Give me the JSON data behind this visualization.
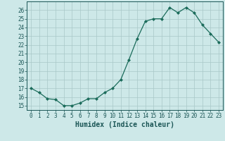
{
  "x": [
    0,
    1,
    2,
    3,
    4,
    5,
    6,
    7,
    8,
    9,
    10,
    11,
    12,
    13,
    14,
    15,
    16,
    17,
    18,
    19,
    20,
    21,
    22,
    23
  ],
  "y": [
    17,
    16.5,
    15.8,
    15.7,
    15.0,
    15.0,
    15.3,
    15.8,
    15.8,
    16.5,
    17.0,
    18.0,
    20.3,
    22.7,
    24.7,
    25.0,
    25.0,
    26.3,
    25.7,
    26.3,
    25.7,
    24.3,
    23.3,
    22.3
  ],
  "xlabel": "Humidex (Indice chaleur)",
  "ylim": [
    14.5,
    27.0
  ],
  "xlim": [
    -0.5,
    23.5
  ],
  "bg_color": "#cde8e8",
  "line_color": "#1a6b5a",
  "grid_color": "#a8c8c8",
  "tick_label_color": "#1a5555",
  "axis_color": "#1a5555",
  "label_color": "#1a5555",
  "yticks": [
    15,
    16,
    17,
    18,
    19,
    20,
    21,
    22,
    23,
    24,
    25,
    26
  ],
  "xticks": [
    0,
    1,
    2,
    3,
    4,
    5,
    6,
    7,
    8,
    9,
    10,
    11,
    12,
    13,
    14,
    15,
    16,
    17,
    18,
    19,
    20,
    21,
    22,
    23
  ],
  "xtick_labels": [
    "0",
    "1",
    "2",
    "3",
    "4",
    "5",
    "6",
    "7",
    "8",
    "9",
    "10",
    "11",
    "12",
    "13",
    "14",
    "15",
    "16",
    "17",
    "18",
    "19",
    "20",
    "21",
    "22",
    "23"
  ],
  "marker": "D",
  "marker_size": 2.0,
  "line_width": 0.9,
  "font_size_ticks": 5.5,
  "font_size_label": 7.0
}
